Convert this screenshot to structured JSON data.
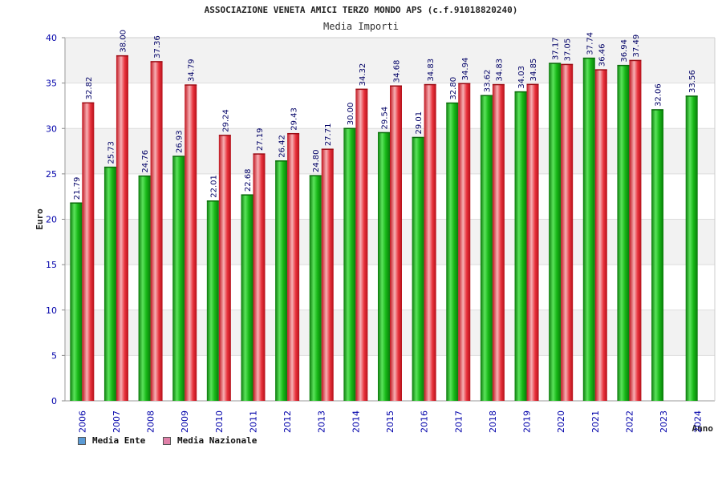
{
  "chart_data": {
    "type": "bar",
    "title": "ASSOCIAZIONE VENETA AMICI TERZO MONDO APS (c.f.91018820240)",
    "subtitle": "Media Importi",
    "ylabel": "Euro",
    "xlabel": "Anno",
    "ylim": [
      0,
      40
    ],
    "yticks": [
      "0",
      "5",
      "10",
      "15",
      "20",
      "25",
      "30",
      "35",
      "40"
    ],
    "categories": [
      "2006",
      "2007",
      "2008",
      "2009",
      "2010",
      "2011",
      "2012",
      "2013",
      "2014",
      "2015",
      "2016",
      "2017",
      "2018",
      "2019",
      "2020",
      "2021",
      "2022",
      "2023",
      "2024"
    ],
    "series": [
      {
        "name": "Media Ente",
        "values": [
          21.79,
          25.73,
          24.76,
          26.93,
          22.01,
          22.68,
          26.42,
          24.8,
          30.0,
          29.54,
          29.01,
          32.8,
          33.62,
          34.03,
          37.17,
          37.74,
          36.94,
          32.06,
          33.56
        ],
        "labels": [
          "21.79",
          "25.73",
          "24.76",
          "26.93",
          "22.01",
          "22.68",
          "26.42",
          "24.80",
          "30.00",
          "29.54",
          "29.01",
          "32.80",
          "33.62",
          "34.03",
          "37.17",
          "37.74",
          "36.94",
          "32.06",
          "33.56"
        ],
        "color": "#1fbf1f",
        "legend_color": "#5b9bd5"
      },
      {
        "name": "Media Nazionale",
        "values": [
          32.82,
          38.0,
          37.36,
          34.79,
          29.24,
          27.19,
          29.43,
          27.71,
          34.32,
          34.68,
          34.83,
          34.94,
          34.83,
          34.85,
          37.05,
          36.46,
          37.49,
          null,
          null
        ],
        "labels": [
          "32.82",
          "38.00",
          "37.36",
          "34.79",
          "29.24",
          "27.19",
          "29.43",
          "27.71",
          "34.32",
          "34.68",
          "34.83",
          "34.94",
          "34.83",
          "34.85",
          "37.05",
          "36.46",
          "37.49",
          "",
          ""
        ],
        "color": "#e8323c",
        "legend_color": "#e080a8"
      }
    ],
    "grid": true,
    "legend_position": "bottom-left"
  }
}
